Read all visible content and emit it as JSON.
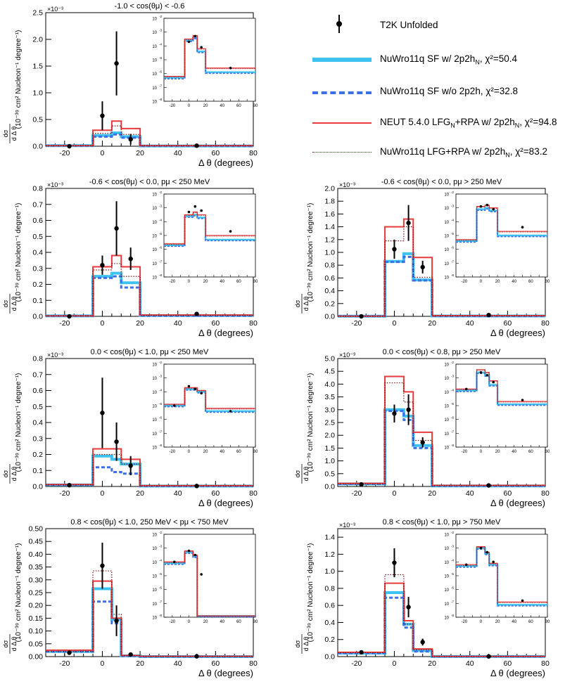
{
  "legend": {
    "data_label": "T2K Unfolded",
    "sf_label": "NuWro11q SF w/ 2p2h",
    "sf_sub": "N",
    "sf_chi": ", χ²=50.4",
    "sfno_label": "NuWro11q SF w/o 2p2h, χ²=32.8",
    "neut_label_a": "NEUT 5.4.0 LFG",
    "neut_sub_a": "N",
    "neut_label_b": "+RPA  w/ 2p2h",
    "neut_sub_b": "N",
    "neut_chi": ", χ²=94.8",
    "lfg_label": "NuWro11q LFG+RPA w/ 2p2h",
    "lfg_sub": "N",
    "lfg_chi": ", χ²=83.2"
  },
  "colors": {
    "data": "#000000",
    "sf": "#3ec3f0",
    "sfno": "#3b6fe8",
    "neut": "#e8393b",
    "lfg": "#7a1010"
  },
  "axis_common": {
    "xlabel": "Δ θ (degrees)",
    "ylabel": "(10⁻³⁹ cm² Nucleon⁻¹ degree⁻¹)",
    "ylabel_frac_num": "dσ",
    "ylabel_frac_den": "d Δ θ",
    "xticks": [
      -20,
      0,
      20,
      40,
      60,
      80
    ],
    "xlim": [
      -30,
      80
    ],
    "inset_xticks": [
      -20,
      -10,
      0,
      10,
      20,
      30,
      40,
      50,
      60,
      70,
      80
    ],
    "inset_xtick_labels": [
      "-20",
      "0",
      "20",
      "40",
      "60",
      "80"
    ],
    "inset_yticks_exp": [
      -2,
      -3,
      -4,
      -5,
      -6,
      -7,
      -8
    ],
    "bins": [
      -30,
      -5,
      5,
      10,
      20,
      80
    ]
  },
  "chart_data": [
    {
      "type": "line",
      "id": "p1",
      "title": "-1.0 < cos(θμ) < -0.6",
      "multiplier": "×10⁻³",
      "ylim": [
        0,
        2.5
      ],
      "yticks": [
        0,
        0.5,
        1.0,
        1.5,
        2.0,
        2.5
      ],
      "ytick_labels": [
        "0.0",
        "0.5",
        "1.0",
        "1.5",
        "2.0",
        "2.5"
      ],
      "data_points": [
        {
          "x": -17.5,
          "y": 0.0,
          "err": 0.01
        },
        {
          "x": 0,
          "y": 0.57,
          "err": 0.27
        },
        {
          "x": 7.5,
          "y": 1.55,
          "err": 0.6
        },
        {
          "x": 15,
          "y": 0.13,
          "err": 0.1
        },
        {
          "x": 50,
          "y": 0.01,
          "err": 0.01
        }
      ],
      "series": [
        {
          "name": "sf",
          "values": [
            0.01,
            0.2,
            0.25,
            0.18,
            0.005
          ]
        },
        {
          "name": "sfno",
          "values": [
            0.01,
            0.18,
            0.22,
            0.16,
            0.005
          ]
        },
        {
          "name": "neut",
          "values": [
            0.01,
            0.3,
            0.47,
            0.33,
            0.01
          ]
        },
        {
          "name": "lfg",
          "values": [
            0.01,
            0.24,
            0.38,
            0.22,
            0.008
          ]
        }
      ],
      "inset": {
        "ylim_exp": [
          -8,
          -2
        ],
        "data_exp": [
          null,
          -3.7,
          -3.3,
          -4.1,
          -5.6
        ],
        "sf_exp": [
          -6.3,
          -3.6,
          -3.4,
          -4.4,
          -5.9
        ],
        "neut_exp": [
          -6.2,
          -3.5,
          -3.25,
          -4.2,
          -5.6
        ]
      }
    },
    {
      "type": "line",
      "id": "p2",
      "title": "-0.6 < cos(θμ) <  0.0, pμ < 250 MeV",
      "multiplier": "×10⁻³",
      "ylim": [
        0,
        0.8
      ],
      "yticks": [
        0,
        0.1,
        0.2,
        0.3,
        0.4,
        0.5,
        0.6,
        0.7,
        0.8
      ],
      "ytick_labels": [
        "0.0",
        "0.1",
        "0.2",
        "0.3",
        "0.4",
        "0.5",
        "0.6",
        "0.7",
        "0.8"
      ],
      "data_points": [
        {
          "x": -17.5,
          "y": 0.0,
          "err": 0.003
        },
        {
          "x": 0,
          "y": 0.32,
          "err": 0.06
        },
        {
          "x": 7.5,
          "y": 0.55,
          "err": 0.17
        },
        {
          "x": 15,
          "y": 0.36,
          "err": 0.07
        },
        {
          "x": 50,
          "y": 0.015,
          "err": 0.01
        }
      ],
      "series": [
        {
          "name": "sf",
          "values": [
            0.003,
            0.25,
            0.27,
            0.21,
            0.005
          ]
        },
        {
          "name": "sfno",
          "values": [
            0.003,
            0.24,
            0.25,
            0.18,
            0.004
          ]
        },
        {
          "name": "neut",
          "values": [
            0.003,
            0.31,
            0.38,
            0.31,
            0.008
          ]
        },
        {
          "name": "lfg",
          "values": [
            0.003,
            0.29,
            0.33,
            0.25,
            0.006
          ]
        }
      ],
      "inset": {
        "ylim_exp": [
          -8,
          -2
        ],
        "data_exp": [
          null,
          -3.3,
          -2.9,
          -3.2,
          -4.7
        ],
        "sf_exp": [
          -5.7,
          -3.6,
          -3.5,
          -3.7,
          -5.3
        ],
        "neut_exp": [
          -5.6,
          -3.5,
          -3.3,
          -3.5,
          -5.0
        ]
      }
    },
    {
      "type": "line",
      "id": "p3",
      "title": "-0.6 < cos(θμ) <  0.0, pμ > 250 MeV",
      "multiplier": "×10⁻³",
      "ylim": [
        0,
        2.0
      ],
      "yticks": [
        0,
        0.2,
        0.4,
        0.6,
        0.8,
        1.0,
        1.2,
        1.4,
        1.6,
        1.8,
        2.0
      ],
      "ytick_labels": [
        "0.0",
        "0.2",
        "0.4",
        "0.6",
        "0.8",
        "1.0",
        "1.2",
        "1.4",
        "1.6",
        "1.8",
        "2.0"
      ],
      "data_points": [
        {
          "x": -17.5,
          "y": 0.0,
          "err": 0.003
        },
        {
          "x": 0,
          "y": 1.05,
          "err": 0.15
        },
        {
          "x": 7.5,
          "y": 1.46,
          "err": 0.28
        },
        {
          "x": 15,
          "y": 0.77,
          "err": 0.1
        },
        {
          "x": 50,
          "y": 0.02,
          "err": 0.01
        }
      ],
      "series": [
        {
          "name": "sf",
          "values": [
            0.003,
            0.86,
            0.98,
            0.57,
            0.006
          ]
        },
        {
          "name": "sfno",
          "values": [
            0.003,
            0.85,
            0.93,
            0.56,
            0.005
          ]
        },
        {
          "name": "neut",
          "values": [
            0.003,
            1.4,
            1.52,
            0.92,
            0.01
          ]
        },
        {
          "name": "lfg",
          "values": [
            0.003,
            1.18,
            1.4,
            0.61,
            0.008
          ]
        }
      ],
      "inset": {
        "ylim_exp": [
          -8,
          -2
        ],
        "data_exp": [
          null,
          -2.9,
          -2.8,
          -3.1,
          -4.4
        ],
        "sf_exp": [
          -5.4,
          -3.1,
          -3.0,
          -3.2,
          -5.0
        ],
        "neut_exp": [
          -5.3,
          -2.9,
          -2.8,
          -3.0,
          -4.7
        ]
      }
    },
    {
      "type": "line",
      "id": "p4",
      "title": "0.0 < cos(θμ) < 1.0, pμ < 250 MeV",
      "multiplier": "×10⁻³",
      "ylim": [
        0,
        0.8
      ],
      "yticks": [
        0,
        0.1,
        0.2,
        0.3,
        0.4,
        0.5,
        0.6,
        0.7,
        0.8
      ],
      "ytick_labels": [
        "0.0",
        "0.1",
        "0.2",
        "0.3",
        "0.4",
        "0.5",
        "0.6",
        "0.7",
        "0.8"
      ],
      "data_points": [
        {
          "x": -17.5,
          "y": 0.008,
          "err": 0.004
        },
        {
          "x": 0,
          "y": 0.46,
          "err": 0.22
        },
        {
          "x": 7.5,
          "y": 0.28,
          "err": 0.12
        },
        {
          "x": 15,
          "y": 0.13,
          "err": 0.06
        },
        {
          "x": 50,
          "y": 0.003,
          "err": 0.003
        }
      ],
      "series": [
        {
          "name": "sf",
          "values": [
            0.01,
            0.19,
            0.17,
            0.14,
            0.003
          ]
        },
        {
          "name": "sfno",
          "values": [
            0.01,
            0.12,
            0.09,
            0.08,
            0.002
          ]
        },
        {
          "name": "neut",
          "values": [
            0.012,
            0.235,
            0.235,
            0.17,
            0.005
          ]
        },
        {
          "name": "lfg",
          "values": [
            0.01,
            0.2,
            0.2,
            0.14,
            0.004
          ]
        }
      ],
      "inset": {
        "ylim_exp": [
          -8,
          -2
        ],
        "data_exp": [
          -5.0,
          -3.6,
          -3.8,
          -4.1,
          -5.4
        ],
        "sf_exp": [
          -5.0,
          -3.8,
          -3.8,
          -4.0,
          -5.4
        ],
        "neut_exp": [
          -4.9,
          -3.7,
          -3.7,
          -3.9,
          -5.2
        ]
      }
    },
    {
      "type": "line",
      "id": "p5",
      "title": "0.0 < cos(θμ) < 0.8, pμ > 250 MeV",
      "multiplier": "×10⁻³",
      "ylim": [
        0,
        5.0
      ],
      "yticks": [
        0,
        0.5,
        1.0,
        1.5,
        2.0,
        2.5,
        3.0,
        3.5,
        4.0,
        4.5,
        5.0
      ],
      "ytick_labels": [
        "0.0",
        "0.5",
        "1.0",
        "1.5",
        "2.0",
        "2.5",
        "3.0",
        "3.5",
        "4.0",
        "4.5",
        "5.0"
      ],
      "data_points": [
        {
          "x": -17.5,
          "y": 0.08,
          "err": 0.02
        },
        {
          "x": 0,
          "y": 2.85,
          "err": 0.35
        },
        {
          "x": 7.5,
          "y": 3.0,
          "err": 0.6
        },
        {
          "x": 15,
          "y": 1.72,
          "err": 0.2
        },
        {
          "x": 50,
          "y": 0.04,
          "err": 0.02
        }
      ],
      "series": [
        {
          "name": "sf",
          "values": [
            0.1,
            3.0,
            2.75,
            1.6,
            0.02
          ]
        },
        {
          "name": "sfno",
          "values": [
            0.1,
            2.95,
            2.6,
            1.5,
            0.02
          ]
        },
        {
          "name": "neut",
          "values": [
            0.12,
            4.3,
            3.7,
            2.12,
            0.04
          ]
        },
        {
          "name": "lfg",
          "values": [
            0.1,
            4.05,
            3.3,
            1.8,
            0.03
          ]
        }
      ],
      "inset": {
        "ylim_exp": [
          -8,
          -2
        ],
        "data_exp": [
          -3.8,
          -2.6,
          -2.8,
          -3.3,
          -4.6
        ],
        "sf_exp": [
          -3.9,
          -2.6,
          -2.8,
          -3.5,
          -4.9
        ],
        "neut_exp": [
          -3.8,
          -2.4,
          -2.6,
          -3.2,
          -4.7
        ]
      }
    },
    {
      "type": "line",
      "id": "p6",
      "title": "0.8 < cos(θμ) < 1.0, 250 MeV < pμ < 750 MeV",
      "multiplier": "",
      "ylim": [
        0,
        0.5
      ],
      "yticks": [
        0,
        0.05,
        0.1,
        0.15,
        0.2,
        0.25,
        0.3,
        0.35,
        0.4,
        0.45,
        0.5
      ],
      "ytick_labels": [
        "0.00",
        "0.05",
        "0.10",
        "0.15",
        "0.20",
        "0.25",
        "0.30",
        "0.35",
        "0.40",
        "0.45",
        "0.50"
      ],
      "data_points": [
        {
          "x": -17.5,
          "y": 0.015,
          "err": 0.005
        },
        {
          "x": 0,
          "y": 0.355,
          "err": 0.09
        },
        {
          "x": 7.5,
          "y": 0.14,
          "err": 0.06
        },
        {
          "x": 15,
          "y": 0.008,
          "err": 0.004
        },
        {
          "x": 50,
          "y": 0.001,
          "err": 0.001
        }
      ],
      "series": [
        {
          "name": "sf",
          "values": [
            0.02,
            0.265,
            0.145,
            0.003,
            0.0
          ]
        },
        {
          "name": "sfno",
          "values": [
            0.02,
            0.215,
            0.13,
            0.002,
            0.0
          ]
        },
        {
          "name": "neut",
          "values": [
            0.025,
            0.295,
            0.15,
            0.004,
            0.001
          ]
        },
        {
          "name": "lfg",
          "values": [
            0.02,
            0.335,
            0.165,
            0.004,
            0.001
          ]
        }
      ],
      "inset": {
        "ylim_exp": [
          -8,
          -2
        ],
        "data_exp": [
          -4.0,
          -3.2,
          -3.5,
          -4.9,
          null
        ],
        "sf_exp": [
          -4.1,
          -3.3,
          -3.6,
          -7.9,
          -7.9
        ],
        "neut_exp": [
          -4.0,
          -3.2,
          -3.5,
          -7.9,
          -7.9
        ]
      }
    },
    {
      "type": "line",
      "id": "p7",
      "title": "0.8 < cos(θμ) < 1.0, pμ > 750 MeV",
      "multiplier": "×10⁻³",
      "ylim": [
        0,
        1.5
      ],
      "yticks": [
        0,
        0.2,
        0.4,
        0.6,
        0.8,
        1.0,
        1.2,
        1.4
      ],
      "ytick_labels": [
        "0.0",
        "0.2",
        "0.4",
        "0.6",
        "0.8",
        "1.0",
        "1.2",
        "1.4"
      ],
      "data_points": [
        {
          "x": -17.5,
          "y": 0.05,
          "err": 0.01
        },
        {
          "x": 0,
          "y": 1.1,
          "err": 0.17
        },
        {
          "x": 7.5,
          "y": 0.58,
          "err": 0.12
        },
        {
          "x": 15,
          "y": 0.17,
          "err": 0.04
        },
        {
          "x": 50,
          "y": 0.002,
          "err": 0.002
        }
      ],
      "series": [
        {
          "name": "sf",
          "values": [
            0.04,
            0.75,
            0.38,
            0.07,
            0.001
          ]
        },
        {
          "name": "sfno",
          "values": [
            0.04,
            0.69,
            0.34,
            0.06,
            0.001
          ]
        },
        {
          "name": "neut",
          "values": [
            0.05,
            0.86,
            0.42,
            0.09,
            0.002
          ]
        },
        {
          "name": "lfg",
          "values": [
            0.045,
            0.96,
            0.38,
            0.08,
            0.0015
          ]
        }
      ],
      "inset": {
        "ylim_exp": [
          -8,
          -2
        ],
        "data_exp": [
          -4.2,
          -3.0,
          -3.3,
          -4.0,
          -6.8
        ],
        "sf_exp": [
          -4.3,
          -3.0,
          -3.4,
          -4.2,
          -7.1
        ],
        "neut_exp": [
          -4.2,
          -2.9,
          -3.3,
          -4.1,
          -6.9
        ]
      }
    }
  ]
}
